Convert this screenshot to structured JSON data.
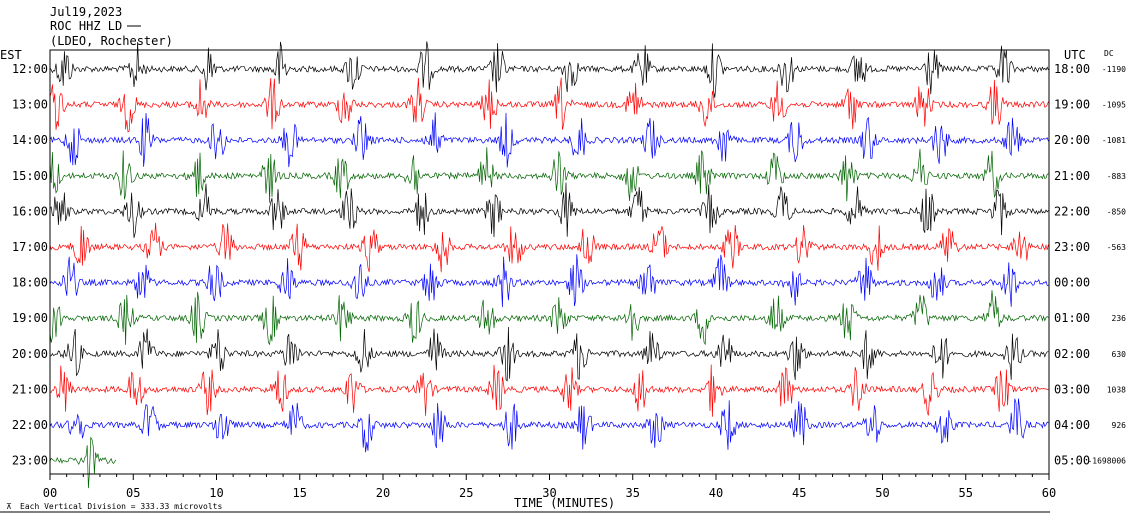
{
  "header": {
    "date": "Jul19,2023",
    "station": "ROC HHZ LD",
    "location": "(LDEO, Rochester)"
  },
  "left_axis_label": "EST",
  "right_axis_label": "UTC",
  "dc_label": "DC",
  "footer_note": "Each Vertical Division = 333.33 microvolts",
  "chart_data": {
    "type": "line",
    "xlabel": "TIME (MINUTES)",
    "xlim": [
      0,
      60
    ],
    "x_ticks": [
      "00",
      "05",
      "10",
      "15",
      "20",
      "25",
      "30",
      "35",
      "40",
      "45",
      "50",
      "55",
      "60"
    ],
    "rows": [
      {
        "est": "12:00",
        "utc": "18:00",
        "dc": "-1190",
        "color": "#000000"
      },
      {
        "est": "13:00",
        "utc": "19:00",
        "dc": "-1095",
        "color": "#ff0000"
      },
      {
        "est": "14:00",
        "utc": "20:00",
        "dc": "-1081",
        "color": "#0000ff"
      },
      {
        "est": "15:00",
        "utc": "21:00",
        "dc": "-883",
        "color": "#006400"
      },
      {
        "est": "16:00",
        "utc": "22:00",
        "dc": "-850",
        "color": "#000000"
      },
      {
        "est": "17:00",
        "utc": "23:00",
        "dc": "-563",
        "color": "#ff0000"
      },
      {
        "est": "18:00",
        "utc": "00:00",
        "dc": "",
        "color": "#0000ff"
      },
      {
        "est": "19:00",
        "utc": "01:00",
        "dc": "236",
        "color": "#006400"
      },
      {
        "est": "20:00",
        "utc": "02:00",
        "dc": "630",
        "color": "#000000"
      },
      {
        "est": "21:00",
        "utc": "03:00",
        "dc": "1038",
        "color": "#ff0000"
      },
      {
        "est": "22:00",
        "utc": "04:00",
        "dc": "926",
        "color": "#0000ff"
      },
      {
        "est": "23:00",
        "utc": "05:00",
        "dc": "-1698006",
        "color": "#006400"
      }
    ],
    "last_row_trace_end_minutes": 4
  }
}
